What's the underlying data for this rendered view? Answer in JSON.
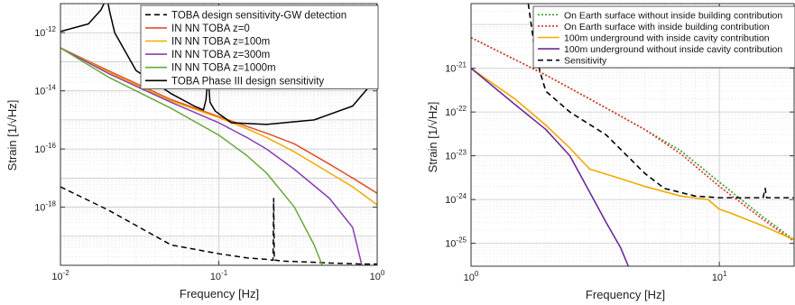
{
  "chart_data": [
    {
      "type": "line",
      "xlabel": "Frequency [Hz]",
      "ylabel": "Strain [1/√Hz]",
      "xscale": "log",
      "yscale": "log",
      "xlim": [
        0.01,
        1
      ],
      "ylim": [
        1e-20,
        1e-11
      ],
      "grid": true,
      "legend_position": "top-right",
      "x_ticks": [
        {
          "value": 0.01,
          "base": "10",
          "exp": "-2"
        },
        {
          "value": 0.1,
          "base": "10",
          "exp": "-1"
        },
        {
          "value": 1,
          "base": "10",
          "exp": "0"
        }
      ],
      "y_ticks": [
        {
          "value": 1e-18,
          "base": "10",
          "exp": "-18"
        },
        {
          "value": 1e-16,
          "base": "10",
          "exp": "-16"
        },
        {
          "value": 1e-14,
          "base": "10",
          "exp": "-14"
        },
        {
          "value": 1e-12,
          "base": "10",
          "exp": "-12"
        }
      ],
      "series": [
        {
          "name": "TOBA design sensitivity-GW detection",
          "color": "#000000",
          "dash": "6,4",
          "x": [
            0.01,
            0.02,
            0.05,
            0.1,
            0.15,
            0.2,
            0.22,
            0.222,
            0.224,
            0.23,
            0.25,
            0.3,
            0.5,
            0.8,
            1.0
          ],
          "y": [
            5e-18,
            8e-19,
            5e-20,
            2.5e-20,
            1.8e-20,
            1.6e-20,
            1.5e-20,
            2e-18,
            1.5e-20,
            1.5e-20,
            1.4e-20,
            1.35e-20,
            1.2e-20,
            1.1e-20,
            1.1e-20
          ]
        },
        {
          "name": "IN NN TOBA z=0",
          "color": "#e0502a",
          "dash": "",
          "x": [
            0.01,
            0.02,
            0.05,
            0.1,
            0.15,
            0.2,
            0.3,
            0.5,
            0.7,
            1.0
          ],
          "y": [
            3e-13,
            5e-14,
            5e-15,
            1.3e-15,
            6e-16,
            3.5e-16,
            1.5e-16,
            3e-17,
            1e-17,
            3e-18
          ]
        },
        {
          "name": "IN NN TOBA z=100m",
          "color": "#f2a900",
          "dash": "",
          "x": [
            0.01,
            0.02,
            0.05,
            0.1,
            0.15,
            0.2,
            0.3,
            0.5,
            0.7,
            1.0
          ],
          "y": [
            3e-13,
            4.5e-14,
            4.5e-15,
            1.2e-15,
            5e-16,
            2.5e-16,
            8e-17,
            1.5e-17,
            5e-18,
            1.2e-18
          ]
        },
        {
          "name": "IN NN TOBA z=300m",
          "color": "#8a3fb3",
          "dash": "",
          "x": [
            0.01,
            0.02,
            0.05,
            0.1,
            0.15,
            0.2,
            0.3,
            0.5,
            0.7,
            0.8
          ],
          "y": [
            3e-13,
            4e-14,
            4e-15,
            8e-16,
            2.5e-16,
            1e-16,
            2e-17,
            2e-18,
            2e-19,
            1e-20
          ]
        },
        {
          "name": "IN NN TOBA z=1000m",
          "color": "#6aa83a",
          "dash": "",
          "x": [
            0.01,
            0.02,
            0.05,
            0.1,
            0.15,
            0.2,
            0.3,
            0.4,
            0.45
          ],
          "y": [
            3e-13,
            3e-14,
            2.5e-15,
            3e-16,
            6e-17,
            1.5e-17,
            1e-18,
            5e-20,
            1e-20
          ]
        },
        {
          "name": "TOBA Phase III design sensitivity",
          "color": "#000000",
          "dash": "",
          "x": [
            0.01,
            0.015,
            0.018,
            0.0195,
            0.02,
            0.0205,
            0.022,
            0.03,
            0.05,
            0.07,
            0.08,
            0.083,
            0.0855,
            0.088,
            0.095,
            0.12,
            0.2,
            0.4,
            0.7,
            0.9,
            0.97,
            1.0
          ],
          "y": [
            1.1e-12,
            2e-12,
            6e-12,
            1.5e-11,
            1e-11,
            5e-12,
            1e-12,
            5e-14,
            8e-15,
            3e-15,
            2.2e-15,
            5e-15,
            3e-14,
            4e-15,
            2e-15,
            8e-16,
            7e-16,
            1e-15,
            3e-15,
            1.5e-14,
            1e-12,
            1e-11
          ]
        }
      ]
    },
    {
      "type": "line",
      "xlabel": "Frequency [Hz]",
      "ylabel": "Strain [1/√Hz]",
      "xscale": "log",
      "yscale": "log",
      "xlim": [
        1,
        20
      ],
      "ylim": [
        3e-26,
        3e-20
      ],
      "grid": true,
      "legend_position": "top-right",
      "x_ticks": [
        {
          "value": 1,
          "base": "10",
          "exp": "0"
        },
        {
          "value": 10,
          "base": "10",
          "exp": "1"
        }
      ],
      "y_ticks": [
        {
          "value": 1e-25,
          "base": "10",
          "exp": "-25"
        },
        {
          "value": 1e-24,
          "base": "10",
          "exp": "-24"
        },
        {
          "value": 1e-23,
          "base": "10",
          "exp": "-23"
        },
        {
          "value": 1e-22,
          "base": "10",
          "exp": "-22"
        },
        {
          "value": 1e-21,
          "base": "10",
          "exp": "-21"
        }
      ],
      "series": [
        {
          "name": "On Earth surface without inside building contribution",
          "color": "#3a9a2a",
          "dash": "2,2",
          "x": [
            1,
            2,
            3,
            5,
            7,
            10,
            15,
            20
          ],
          "y": [
            5e-21,
            7e-22,
            2e-22,
            4e-23,
            1.3e-23,
            2.5e-24,
            4e-25,
            1.2e-25
          ]
        },
        {
          "name": "On Earth surface with inside building contribution",
          "color": "#e0302a",
          "dash": "2,2",
          "x": [
            1,
            2,
            3,
            5,
            7,
            10,
            15,
            20
          ],
          "y": [
            5e-21,
            7e-22,
            2e-22,
            4e-23,
            1.1e-23,
            2e-24,
            3.5e-25,
            1.1e-25
          ]
        },
        {
          "name": "100m underground with inside cavity contribution",
          "color": "#f2a900",
          "dash": "",
          "x": [
            1,
            1.5,
            2,
            2.5,
            3,
            4,
            5,
            7,
            9,
            10,
            11,
            15,
            20
          ],
          "y": [
            1e-21,
            2e-22,
            5e-23,
            1.5e-23,
            5e-24,
            3e-24,
            2e-24,
            1.2e-24,
            1e-24,
            6e-25,
            5e-25,
            2.5e-25,
            1.2e-25
          ]
        },
        {
          "name": "100m underground without inside cavity contribution",
          "color": "#6a2a9a",
          "dash": "",
          "x": [
            1,
            1.5,
            2,
            2.5,
            3,
            3.5,
            4,
            4.3
          ],
          "y": [
            1e-21,
            1.5e-22,
            4e-23,
            1e-23,
            1.5e-24,
            3e-25,
            8e-26,
            3e-26
          ]
        },
        {
          "name": "Sensitivity",
          "color": "#000000",
          "dash": "6,4",
          "x": [
            1.7,
            1.8,
            1.9,
            2.0,
            2.5,
            3.5,
            5,
            6,
            8,
            10,
            15,
            15.3,
            15.5,
            15.8,
            20
          ],
          "y": [
            3e-20,
            3e-21,
            8e-22,
            3e-22,
            1e-22,
            3e-23,
            4e-24,
            1.8e-24,
            1.2e-24,
            1.1e-24,
            1.1e-24,
            1.8e-24,
            1.1e-24,
            1.1e-24,
            1.1e-24
          ]
        }
      ]
    }
  ]
}
